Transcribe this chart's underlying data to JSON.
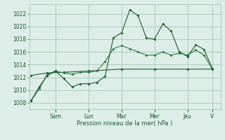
{
  "background_color": "#ddeee8",
  "plot_bg_color": "#ddeee8",
  "grid_color": "#aaccbb",
  "line_color_dark": "#1a5c2a",
  "line_color_mid": "#2d7a40",
  "xlabel": "Pression niveau de la mer( hPa )",
  "yticks": [
    1008,
    1010,
    1012,
    1014,
    1016,
    1018,
    1020,
    1022
  ],
  "ylim": [
    1007.0,
    1023.5
  ],
  "xlim": [
    -0.1,
    11.5
  ],
  "xtick_positions": [
    1.5,
    3.5,
    5.5,
    7.5,
    9.5,
    11.0
  ],
  "xtick_labels": [
    "Sam",
    "Lun",
    "Mar",
    "Mer",
    "Jeu",
    "V"
  ],
  "series1_x": [
    0,
    0.5,
    1.0,
    1.5,
    2.0,
    2.5,
    3.0,
    3.5,
    4.0,
    4.5,
    5.0,
    5.5,
    6.0,
    6.5,
    7.0,
    7.5,
    8.0,
    8.5,
    9.0,
    9.5,
    10.0,
    10.5,
    11.0
  ],
  "series1_y": [
    1008.3,
    1010.5,
    1012.3,
    1013.0,
    1011.8,
    1010.5,
    1011.0,
    1011.0,
    1011.2,
    1012.2,
    1018.2,
    1019.0,
    1022.6,
    1021.7,
    1018.2,
    1018.0,
    1020.4,
    1019.3,
    1016.0,
    1015.3,
    1017.1,
    1016.4,
    1013.4
  ],
  "series2_x": [
    0,
    1.0,
    2.0,
    3.5,
    5.5,
    7.5,
    9.5,
    11.0
  ],
  "series2_y": [
    1012.3,
    1012.7,
    1012.8,
    1013.0,
    1013.3,
    1013.3,
    1013.3,
    1013.3
  ],
  "series3_x": [
    0,
    0.5,
    1.0,
    1.5,
    2.0,
    2.5,
    3.0,
    3.5,
    4.0,
    4.5,
    5.0,
    5.5,
    6.0,
    6.5,
    7.0,
    7.5,
    8.0,
    8.5,
    9.0,
    9.5,
    10.0,
    10.5,
    11.0
  ],
  "series3_y": [
    1008.3,
    1010.2,
    1012.5,
    1013.0,
    1012.7,
    1012.5,
    1012.8,
    1012.8,
    1013.0,
    1014.5,
    1016.5,
    1017.0,
    1016.5,
    1016.0,
    1015.5,
    1015.5,
    1016.0,
    1015.5,
    1015.8,
    1015.5,
    1016.3,
    1015.5,
    1013.3
  ]
}
